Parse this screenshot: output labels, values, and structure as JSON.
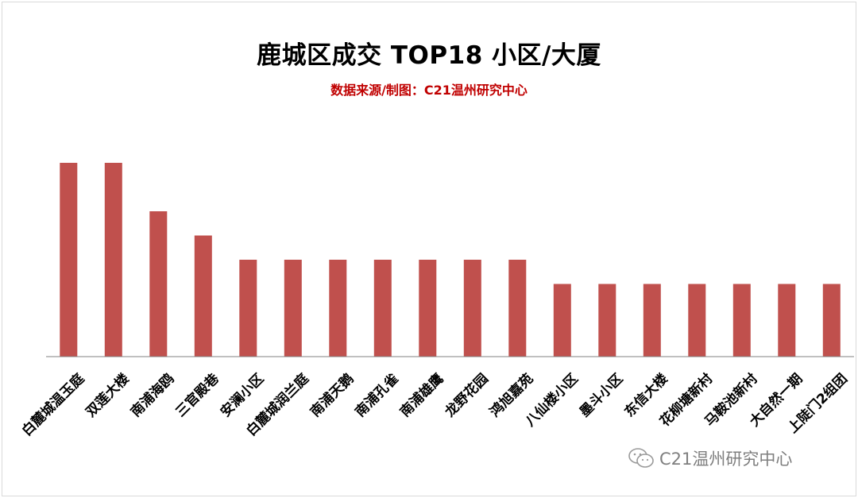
{
  "chart_data": {
    "type": "bar",
    "title": "鹿城区成交 TOP18 小区/大厦",
    "subtitle": "数据来源/制图：C21温州研究中心",
    "categories": [
      "白麓城温玉庭",
      "双莲大楼",
      "南浦海鸥",
      "三官殿巷",
      "安澜小区",
      "白麓城润兰庭",
      "南浦天鹅",
      "南浦孔雀",
      "南浦雄鹰",
      "龙野花园",
      "鸿旭嘉苑",
      "八仙楼小区",
      "墨斗小区",
      "东信大楼",
      "花柳塘新村",
      "马鞍池新村",
      "大自然一期",
      "上陡门2组团"
    ],
    "values": [
      8,
      8,
      6,
      5,
      4,
      4,
      4,
      4,
      4,
      4,
      4,
      3,
      3,
      3,
      3,
      3,
      3,
      3
    ],
    "ylim": [
      0,
      8
    ],
    "bar_color": "#c0504d",
    "axis_color": "#808080",
    "grid": false,
    "legend": "none"
  },
  "watermark": {
    "text": "C21温州研究中心",
    "icon": "wechat-icon"
  }
}
